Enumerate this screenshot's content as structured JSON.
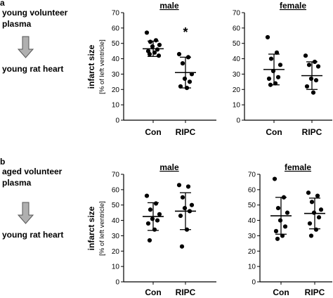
{
  "panels": [
    {
      "letter": "a",
      "flow": {
        "source": [
          "young volunteer",
          "plasma"
        ],
        "target": "young rat heart"
      },
      "ylabel": "infarct size",
      "ylabel_sub": "[% of left ventricle]"
    },
    {
      "letter": "b",
      "flow": {
        "source": [
          "aged volunteer",
          "plasma"
        ],
        "target": "young rat heart"
      },
      "ylabel": "infarct size",
      "ylabel_sub": "[% of left ventricle]"
    }
  ],
  "chart_data": [
    {
      "type": "scatter",
      "panel": "a",
      "title": "male",
      "categories": [
        "Con",
        "RIPC"
      ],
      "ylim": [
        0,
        70
      ],
      "yticks": [
        0,
        10,
        20,
        30,
        40,
        50,
        60,
        70
      ],
      "series": [
        {
          "category": "Con",
          "points": [
            57,
            52,
            51,
            49,
            48,
            46,
            45,
            44,
            43,
            42
          ],
          "mean": 46.5,
          "sd": 5
        },
        {
          "category": "RIPC",
          "points": [
            43,
            41,
            37,
            30,
            27,
            25,
            22,
            21
          ],
          "mean": 31,
          "sd": 10
        }
      ],
      "annotation": {
        "text": "*",
        "category": "RIPC"
      }
    },
    {
      "type": "scatter",
      "panel": "a",
      "title": "female",
      "categories": [
        "Con",
        "RIPC"
      ],
      "ylim": [
        0,
        70
      ],
      "yticks": [
        0,
        10,
        20,
        30,
        40,
        50,
        60,
        70
      ],
      "series": [
        {
          "category": "Con",
          "points": [
            54,
            44,
            40,
            36,
            32,
            28,
            27,
            24,
            23
          ],
          "mean": 33,
          "sd": 10
        },
        {
          "category": "RIPC",
          "points": [
            42,
            38,
            36,
            35,
            27,
            26,
            22,
            18
          ],
          "mean": 29,
          "sd": 9
        }
      ]
    },
    {
      "type": "scatter",
      "panel": "b",
      "title": "male",
      "categories": [
        "Con",
        "RIPC"
      ],
      "ylim": [
        0,
        70
      ],
      "yticks": [
        0,
        10,
        20,
        30,
        40,
        50,
        60,
        70
      ],
      "series": [
        {
          "category": "Con",
          "points": [
            56,
            51,
            47,
            44,
            41,
            40,
            38,
            34,
            27
          ],
          "mean": 42.5,
          "sd": 9
        },
        {
          "category": "RIPC",
          "points": [
            63,
            62,
            55,
            50,
            48,
            46,
            43,
            34,
            23
          ],
          "mean": 46,
          "sd": 12
        }
      ]
    },
    {
      "type": "scatter",
      "panel": "b",
      "title": "female",
      "categories": [
        "Con",
        "RIPC"
      ],
      "ylim": [
        0,
        70
      ],
      "yticks": [
        0,
        10,
        20,
        30,
        40,
        50,
        60,
        70
      ],
      "series": [
        {
          "category": "Con",
          "points": [
            67,
            55,
            48,
            45,
            40,
            36,
            33,
            30,
            28
          ],
          "mean": 43,
          "sd": 12
        },
        {
          "category": "RIPC",
          "points": [
            58,
            56,
            52,
            47,
            45,
            42,
            38,
            34,
            30
          ],
          "mean": 44.5,
          "sd": 10
        }
      ]
    }
  ]
}
